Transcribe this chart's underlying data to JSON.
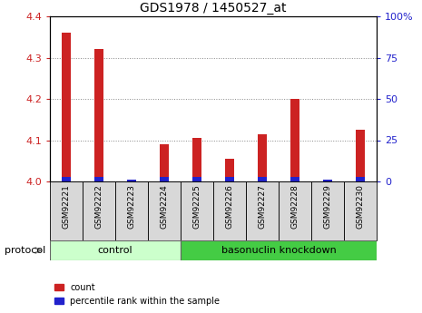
{
  "title": "GDS1978 / 1450527_at",
  "samples": [
    "GSM92221",
    "GSM92222",
    "GSM92223",
    "GSM92224",
    "GSM92225",
    "GSM92226",
    "GSM92227",
    "GSM92228",
    "GSM92229",
    "GSM92230"
  ],
  "count_values": [
    4.36,
    4.32,
    4.0,
    4.09,
    4.105,
    4.055,
    4.115,
    4.2,
    4.0,
    4.125
  ],
  "percentile_values": [
    3,
    3,
    1,
    3,
    3,
    3,
    3,
    3,
    1,
    3
  ],
  "ylim_left": [
    4.0,
    4.4
  ],
  "ylim_right": [
    0,
    100
  ],
  "yticks_left": [
    4.0,
    4.1,
    4.2,
    4.3,
    4.4
  ],
  "yticks_right": [
    0,
    25,
    50,
    75,
    100
  ],
  "bar_color_red": "#cc2222",
  "bar_color_blue": "#2222cc",
  "control_label": "control",
  "knockdown_label": "basonuclin knockdown",
  "protocol_label": "protocol",
  "legend_count": "count",
  "legend_pct": "percentile rank within the sample",
  "control_color": "#ccffcc",
  "knockdown_color": "#44cc44",
  "sample_box_color": "#d8d8d8",
  "dotted_grid_color": "#888888",
  "left_tick_color": "#cc2222",
  "right_tick_color": "#2222cc",
  "bg_color": "#ffffff",
  "n_control": 4,
  "n_knockdown": 6
}
